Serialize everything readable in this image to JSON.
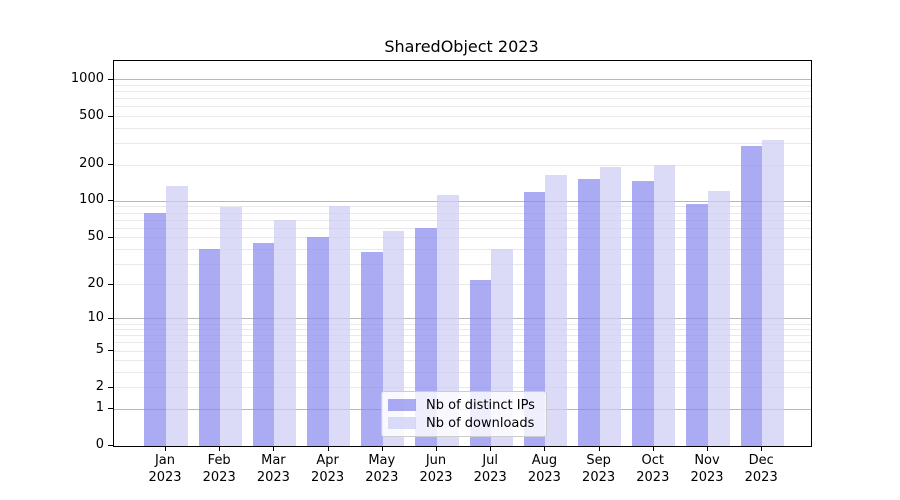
{
  "chart_data": {
    "type": "bar",
    "title": "SharedObject 2023",
    "categories": [
      "Jan",
      "Feb",
      "Mar",
      "Apr",
      "May",
      "Jun",
      "Jul",
      "Aug",
      "Sep",
      "Oct",
      "Nov",
      "Dec"
    ],
    "category_year": "2023",
    "series": [
      {
        "name": "Nb of distinct IPs",
        "color": "rgba(136,136,238,0.7)",
        "values": [
          80,
          40,
          45,
          51,
          38,
          60,
          22,
          120,
          153,
          148,
          95,
          285
        ]
      },
      {
        "name": "Nb of downloads",
        "color": "rgba(204,204,245,0.7)",
        "values": [
          135,
          90,
          70,
          91,
          57,
          113,
          40,
          165,
          192,
          200,
          122,
          320
        ]
      }
    ],
    "y_ticks": [
      0,
      1,
      2,
      5,
      10,
      20,
      50,
      100,
      200,
      500,
      1000
    ],
    "y_scale": "log1p",
    "ylim": [
      0,
      1430
    ],
    "xlabel": "",
    "ylabel": "",
    "grid": true,
    "grid_major_color": "#b8b8b8",
    "grid_minor_color": "#e9e9e9",
    "legend_position": "lower center"
  }
}
